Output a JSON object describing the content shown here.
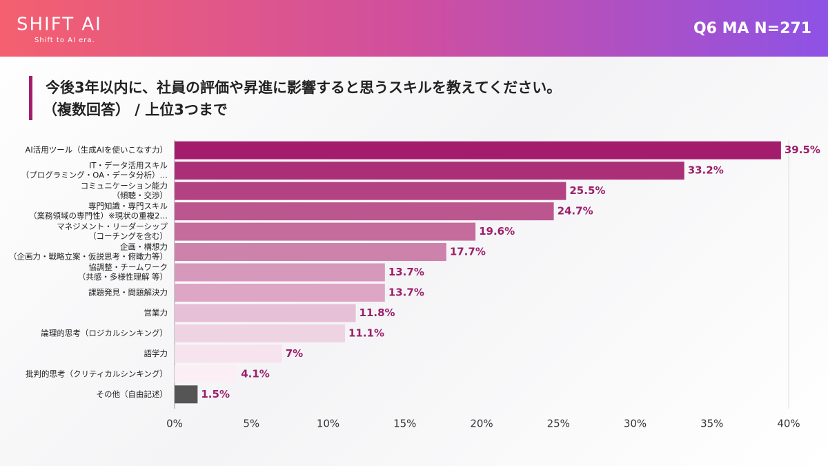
{
  "header": {
    "logo": "SHIFT AI",
    "tagline": "Shift to AI era.",
    "badge": "Q6 MA N=271"
  },
  "chart_data": {
    "type": "bar",
    "orientation": "horizontal",
    "title": "今後3年以内に、社員の評価や昇進に影響すると思うスキルを教えてください。",
    "subtitle": "（複数回答） / 上位3つまで",
    "categories": [
      [
        "AI活用ツール（生成AIを使いこなす力）"
      ],
      [
        "IT・データ活用スキル",
        "（プログラミング・OA・データ分析）…"
      ],
      [
        "コミュニケーション能力",
        "（傾聴・交渉）"
      ],
      [
        "専門知識・専門スキル",
        "（業務領域の専門性）※現状の重複2…"
      ],
      [
        "マネジメント・リーダーシップ",
        "（コーチングを含む）"
      ],
      [
        "企画・構想力",
        "（企画力・戦略立案・仮説思考・俯瞰力等）"
      ],
      [
        "協調整・チームワーク",
        "（共感・多様性理解 等）"
      ],
      [
        "課題発見・問題解決力"
      ],
      [
        "営業力"
      ],
      [
        "論理的思考（ロジカルシンキング）"
      ],
      [
        "語学力"
      ],
      [
        "批判的思考（クリティカルシンキング）"
      ],
      [
        "その他（自由記述）"
      ]
    ],
    "values": [
      39.5,
      33.2,
      25.5,
      24.7,
      19.6,
      17.7,
      13.7,
      13.7,
      11.8,
      11.1,
      7,
      4.1,
      1.5
    ],
    "value_labels": [
      "39.5%",
      "33.2%",
      "25.5%",
      "24.7%",
      "19.6%",
      "17.7%",
      "13.7%",
      "13.7%",
      "11.8%",
      "11.1%",
      "7%",
      "4.1%",
      "1.5%"
    ],
    "colors": [
      "#a31d6c",
      "#aa2f77",
      "#b34282",
      "#bb568f",
      "#c56c9d",
      "#cd82ab",
      "#d698bb",
      "#dca6c4",
      "#e6c0d6",
      "#eed3e2",
      "#f6e3ee",
      "#fbeff5",
      "#555555"
    ],
    "xlim": [
      0,
      40
    ],
    "xticks": [
      {
        "value": 0,
        "label": "0%"
      },
      {
        "value": 5,
        "label": "5%"
      },
      {
        "value": 10,
        "label": "10%"
      },
      {
        "value": 15,
        "label": "15%"
      },
      {
        "value": 20,
        "label": "20%"
      },
      {
        "value": 25,
        "label": "25%"
      },
      {
        "value": 30,
        "label": "30%"
      },
      {
        "value": 35,
        "label": "35%"
      },
      {
        "value": 40,
        "label": "40%"
      }
    ],
    "grid": false
  }
}
